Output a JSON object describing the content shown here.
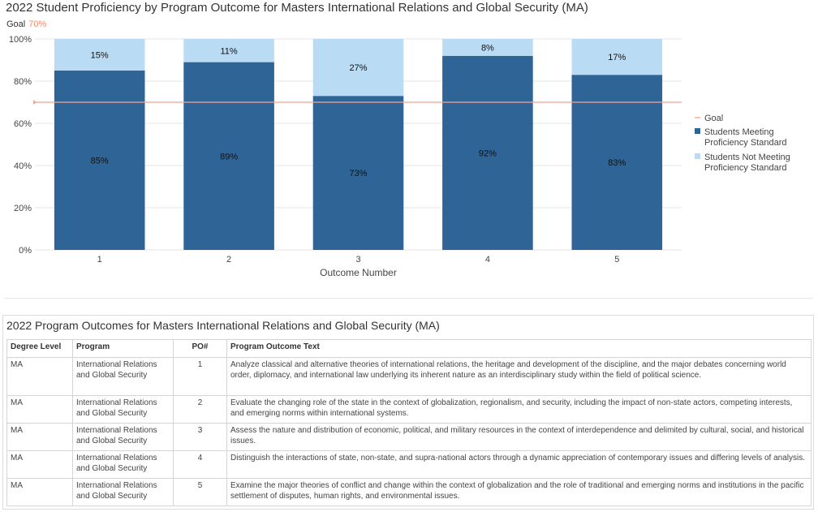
{
  "chart_data": {
    "type": "bar",
    "stacked": true,
    "title": "2022 Student Proficiency by Program Outcome for Masters International Relations and Global Security (MA)",
    "goal_label": "Goal",
    "goal_value_text": "70%",
    "goal": 70,
    "categories": [
      "1",
      "2",
      "3",
      "4",
      "5"
    ],
    "xlabel": "Outcome Number",
    "ylabel": "",
    "ylim": [
      0,
      100
    ],
    "yticks": [
      "0%",
      "20%",
      "40%",
      "60%",
      "80%",
      "100%"
    ],
    "series": [
      {
        "name": "Students Meeting Proficiency Standard",
        "legend_lines": [
          "Students Meeting",
          "Proficiency Standard"
        ],
        "values": [
          85,
          89,
          73,
          92,
          83
        ],
        "labels": [
          "85%",
          "89%",
          "73%",
          "92%",
          "83%"
        ],
        "color": "#2e6496"
      },
      {
        "name": "Students Not Meeting Proficiency Standard",
        "legend_lines": [
          "Students Not Meeting",
          "Proficiency Standard"
        ],
        "values": [
          15,
          11,
          27,
          8,
          17
        ],
        "labels": [
          "15%",
          "11%",
          "27%",
          "8%",
          "17%"
        ],
        "color": "#b9dcf4"
      }
    ],
    "goal_series": {
      "name": "Goal",
      "color": "#f4a58f"
    },
    "legend_position": "right",
    "grid": true
  },
  "table": {
    "title": "2022 Program Outcomes for Masters International Relations and Global Security (MA)",
    "headers": [
      "Degree Level",
      "Program",
      "PO#",
      "Program Outcome Text"
    ],
    "rows": [
      {
        "degree": "MA",
        "program": "International Relations and Global Security",
        "po": "1",
        "text": "Analyze classical and alternative theories of international relations, the heritage and development of the discipline, and the major debates concerning world order, diplomacy, and international law underlying its inherent nature as an interdisciplinary study within the field of political science."
      },
      {
        "degree": "MA",
        "program": "International Relations and Global Security",
        "po": "2",
        "text": "Evaluate the changing role of the state in the context of globalization, regionalism, and security, including the impact of non-state actors, competing interests, and emerging norms within international systems."
      },
      {
        "degree": "MA",
        "program": "International Relations and Global Security",
        "po": "3",
        "text": "Assess the nature and distribution of economic, political, and military resources in the context of interdependence and delimited by cultural, social, and historical issues."
      },
      {
        "degree": "MA",
        "program": "International Relations and Global Security",
        "po": "4",
        "text": "Distinguish the interactions of state, non-state, and supra-national actors through a dynamic appreciation of contemporary issues and differing levels of analysis."
      },
      {
        "degree": "MA",
        "program": "International Relations and Global Security",
        "po": "5",
        "text": "Examine the major theories of conflict and change within the context of globalization and the role of traditional and emerging norms and institutions in the pacific settlement of disputes, human rights, and environmental issues."
      }
    ]
  }
}
